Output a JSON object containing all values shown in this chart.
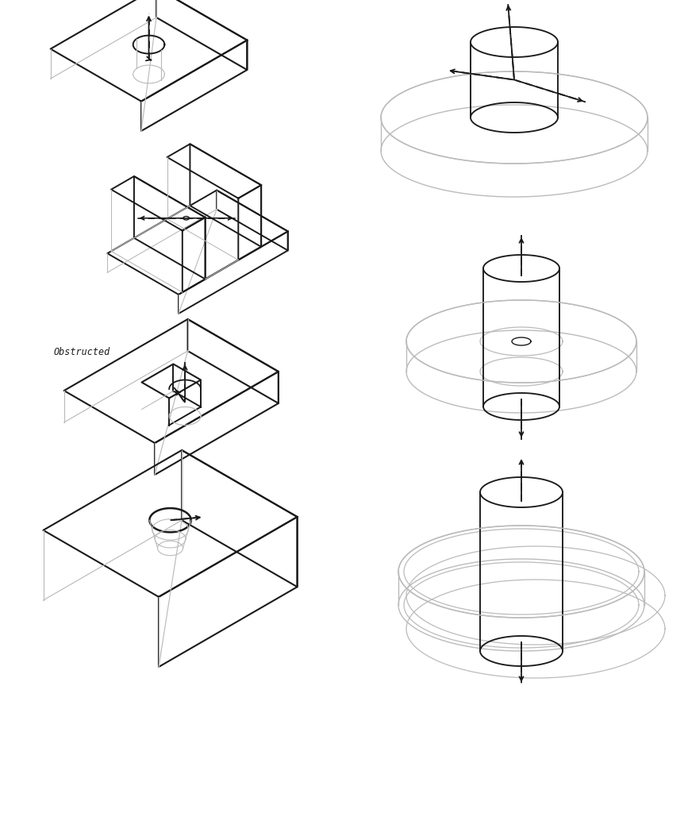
{
  "bg_color": "#ffffff",
  "line_color": "#1a1a1a",
  "light_line_color": "#bbbbbb",
  "obstructed_label": "Obstructed",
  "figsize": [
    8.67,
    10.24
  ],
  "dpi": 100
}
